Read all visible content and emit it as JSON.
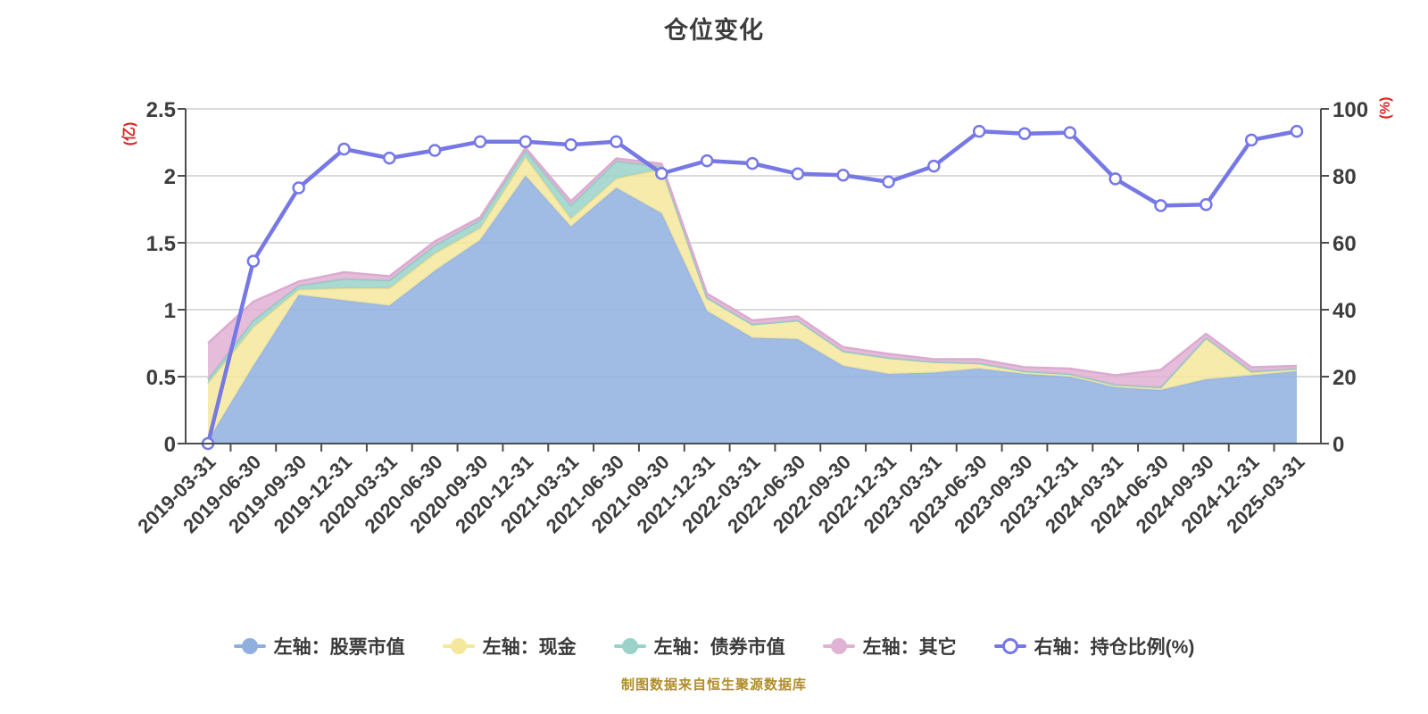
{
  "title": "仓位变化",
  "caption": "制图数据来自恒生聚源数据库",
  "colors": {
    "background": "#ffffff",
    "grid": "#dadada",
    "axis_line": "#4d4d4d",
    "tick_text": "#3d3d3d",
    "axis_name_red": "#dd2222",
    "title_text": "#3c3c3c",
    "caption_text": "#b08d2a"
  },
  "chart_data": {
    "type": "area",
    "stacked": true,
    "grid": true,
    "legend_position": "bottom",
    "categories": [
      "2019-03-31",
      "2019-06-30",
      "2019-09-30",
      "2019-12-31",
      "2020-03-31",
      "2020-06-30",
      "2020-09-30",
      "2020-12-31",
      "2021-03-31",
      "2021-06-30",
      "2021-09-30",
      "2021-12-31",
      "2022-03-31",
      "2022-06-30",
      "2022-09-30",
      "2022-12-31",
      "2023-03-31",
      "2023-06-30",
      "2023-09-30",
      "2023-12-31",
      "2024-03-31",
      "2024-06-30",
      "2024-09-30",
      "2024-12-31",
      "2025-03-31"
    ],
    "left_axis": {
      "label": "(亿)",
      "ticks": [
        0,
        0.5,
        1,
        1.5,
        2,
        2.5
      ],
      "max": 2.5
    },
    "right_axis": {
      "label": "(%)",
      "ticks": [
        0,
        20,
        40,
        60,
        80,
        100
      ],
      "max": 100
    },
    "series": [
      {
        "name": "左轴：股票市值",
        "type": "area",
        "axis": "left",
        "color": "#8fb0df",
        "edge": "#98b5e1",
        "values": [
          0.02,
          0.58,
          1.11,
          1.07,
          1.03,
          1.29,
          1.52,
          2.0,
          1.62,
          1.91,
          1.72,
          0.99,
          0.79,
          0.78,
          0.58,
          0.52,
          0.53,
          0.56,
          0.52,
          0.5,
          0.42,
          0.4,
          0.48,
          0.51,
          0.54
        ]
      },
      {
        "name": "左轴：现金",
        "type": "area",
        "axis": "left",
        "color": "#f5e79c",
        "edge": "#f0df8e",
        "values": [
          0.43,
          0.29,
          0.04,
          0.09,
          0.13,
          0.13,
          0.09,
          0.14,
          0.06,
          0.07,
          0.33,
          0.1,
          0.1,
          0.14,
          0.11,
          0.12,
          0.08,
          0.04,
          0.02,
          0.02,
          0.02,
          0.02,
          0.31,
          0.02,
          0.02
        ]
      },
      {
        "name": "左轴：债券市值",
        "type": "area",
        "axis": "left",
        "color": "#9ad2c9",
        "edge": "#8fccc2",
        "values": [
          0.03,
          0.05,
          0.03,
          0.07,
          0.06,
          0.06,
          0.06,
          0.05,
          0.1,
          0.13,
          0.02,
          0,
          0,
          0,
          0,
          0,
          0,
          0,
          0,
          0,
          0,
          0,
          0,
          0.01,
          0
        ]
      },
      {
        "name": "左轴：其它",
        "type": "area",
        "axis": "left",
        "color": "#e0b2d3",
        "edge": "#dcaad0",
        "values": [
          0.27,
          0.14,
          0.03,
          0.05,
          0.03,
          0.03,
          0.02,
          0.02,
          0.03,
          0.02,
          0.02,
          0.03,
          0.03,
          0.03,
          0.03,
          0.03,
          0.02,
          0.03,
          0.03,
          0.04,
          0.07,
          0.13,
          0.03,
          0.03,
          0.02
        ]
      },
      {
        "name": "右轴：持仓比例(%)",
        "type": "line",
        "axis": "right",
        "color": "#7678e6",
        "marker_fill": "#ffffff",
        "values": [
          0,
          54.5,
          76.4,
          88.0,
          85.3,
          87.6,
          90.2,
          90.2,
          89.3,
          90.2,
          80.7,
          84.5,
          83.7,
          80.6,
          80.2,
          78.2,
          82.9,
          93.3,
          92.6,
          92.9,
          79.1,
          71.1,
          71.4,
          90.7,
          93.3
        ]
      }
    ]
  }
}
